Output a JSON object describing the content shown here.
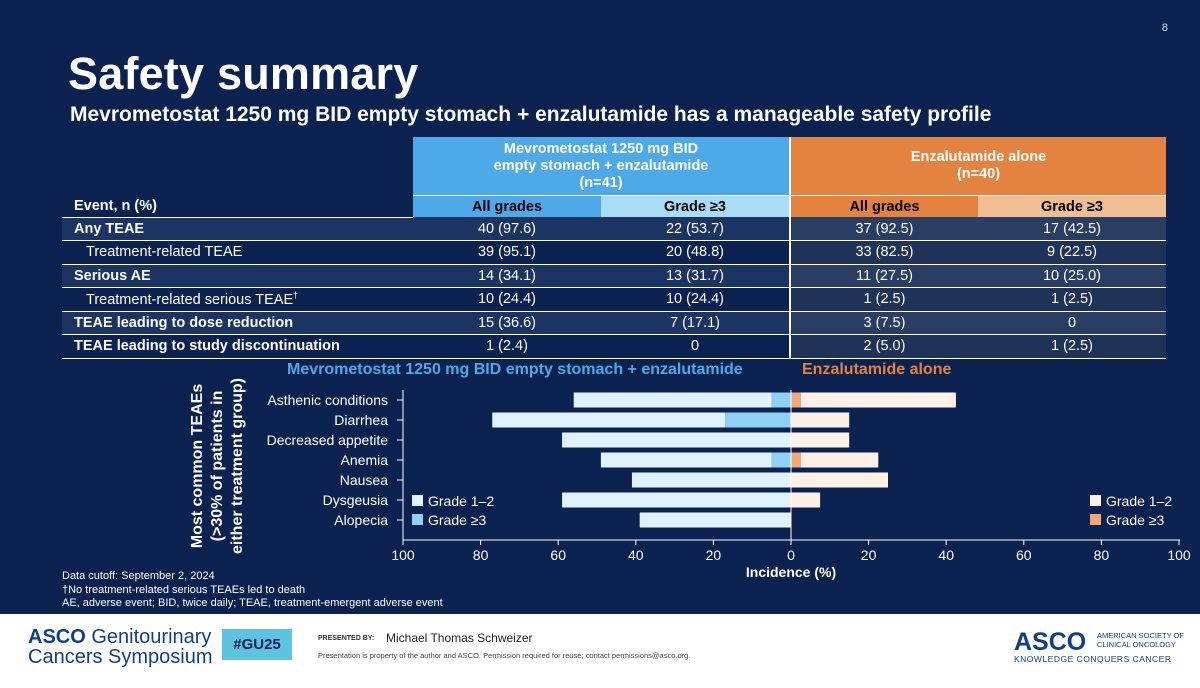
{
  "slide": {
    "page_number": "8",
    "title": "Safety summary",
    "subtitle": "Mevrometostat 1250 mg BID empty stomach + enzalutamide has a manageable safety profile"
  },
  "table": {
    "group1": [
      "Mevrometostat 1250 mg BID",
      "empty stomach + enzalutamide",
      "(n=41)"
    ],
    "group2": [
      "Enzalutamide alone",
      "(n=40)"
    ],
    "event_label": "Event, n (%)",
    "sub_headers": [
      "All grades",
      "Grade ≥3",
      "All grades",
      "Grade ≥3"
    ],
    "rows": [
      {
        "label": "Any TEAE",
        "sup": "",
        "values": [
          "40 (97.6)",
          "22 (53.7)",
          "37 (92.5)",
          "17 (42.5)"
        ]
      },
      {
        "label": "Treatment-related TEAE",
        "sup": "",
        "values": [
          "39 (95.1)",
          "20 (48.8)",
          "33 (82.5)",
          "9 (22.5)"
        ]
      },
      {
        "label": "Serious AE",
        "sup": "",
        "values": [
          "14 (34.1)",
          "13 (31.7)",
          "11 (27.5)",
          "10 (25.0)"
        ]
      },
      {
        "label": "Treatment-related serious TEAE",
        "sup": "†",
        "values": [
          "10 (24.4)",
          "10 (24.4)",
          "1 (2.5)",
          "1 (2.5)"
        ]
      },
      {
        "label": "TEAE leading to dose reduction",
        "sup": "",
        "values": [
          "15 (36.6)",
          "7 (17.1)",
          "3 (7.5)",
          "0"
        ]
      },
      {
        "label": "TEAE leading to study discontinuation",
        "sup": "",
        "values": [
          "1 (2.4)",
          "0",
          "2 (5.0)",
          "1 (2.5)"
        ]
      }
    ]
  },
  "chart_data": {
    "type": "bar",
    "orientation": "horizontal-butterfly",
    "title_left": "Mevrometostat 1250 mg BID empty stomach + enzalutamide",
    "title_right": "Enzalutamide alone",
    "ylabel": [
      "Most common TEAEs",
      "(>30% of patients in",
      "either treatment group)"
    ],
    "xlabel": "Incidence (%)",
    "xticks": [
      "100",
      "80",
      "60",
      "40",
      "20",
      "0",
      "20",
      "40",
      "60",
      "80",
      "100"
    ],
    "xlim": [
      -100,
      100
    ],
    "categories": [
      "Asthenic conditions",
      "Diarrhea",
      "Decreased appetite",
      "Anemia",
      "Nausea",
      "Dysgeusia",
      "Alopecia"
    ],
    "series": [
      {
        "name": "Mevrometostat Grade 1–2",
        "side": "left",
        "values": [
          51,
          60,
          59,
          44,
          41,
          59,
          39
        ]
      },
      {
        "name": "Mevrometostat Grade ≥3",
        "side": "left",
        "values": [
          5,
          17,
          0,
          5,
          0,
          0,
          0
        ]
      },
      {
        "name": "Enzalutamide Grade 1–2",
        "side": "right",
        "values": [
          40,
          15,
          15,
          20,
          25,
          7.5,
          0
        ]
      },
      {
        "name": "Enzalutamide Grade ≥3",
        "side": "right",
        "values": [
          2.5,
          0,
          0,
          2.5,
          0,
          0,
          0
        ]
      }
    ],
    "legend_left": [
      "Grade 1–2",
      "Grade ≥3"
    ],
    "legend_right": [
      "Grade 1–2",
      "Grade ≥3"
    ],
    "colors": {
      "mev_low": "#e0f2fb",
      "mev_high": "#8fd1f2",
      "enz_low": "#fdf0e6",
      "enz_high": "#f0a878"
    }
  },
  "footnotes": [
    "Data cutoff: September 2, 2024",
    "†No treatment-related serious TEAEs led to death",
    "AE, adverse event; BID, twice daily; TEAE, treatment-emergent adverse event"
  ],
  "footer": {
    "asco_line1": "ASCO",
    "asco_line1b": "Genitourinary",
    "asco_line2": "Cancers Symposium",
    "hashtag": "#GU25",
    "presented_by": "PRESENTED BY:",
    "presenter": "Michael Thomas Schweizer",
    "property": "Presentation is property of the author and ASCO. Permission required for reuse; contact permissions@asco.org.",
    "asco_logo": "ASCO",
    "asco_org_line1": "AMERICAN SOCIETY OF",
    "asco_org_line2": "CLINICAL ONCOLOGY",
    "asco_tag": "KNOWLEDGE CONQUERS CANCER"
  }
}
